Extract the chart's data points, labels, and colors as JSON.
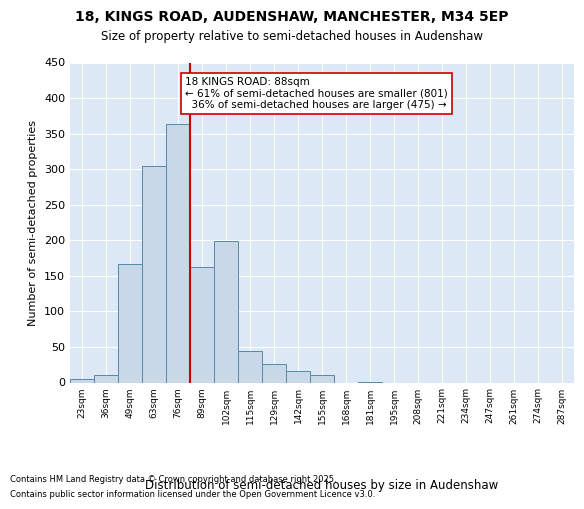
{
  "title1": "18, KINGS ROAD, AUDENSHAW, MANCHESTER, M34 5EP",
  "title2": "Size of property relative to semi-detached houses in Audenshaw",
  "xlabel": "Distribution of semi-detached houses by size in Audenshaw",
  "ylabel": "Number of semi-detached properties",
  "bin_labels": [
    "23sqm",
    "36sqm",
    "49sqm",
    "63sqm",
    "76sqm",
    "89sqm",
    "102sqm",
    "115sqm",
    "129sqm",
    "142sqm",
    "155sqm",
    "168sqm",
    "181sqm",
    "195sqm",
    "208sqm",
    "221sqm",
    "234sqm",
    "247sqm",
    "261sqm",
    "274sqm",
    "287sqm"
  ],
  "bar_values": [
    5,
    11,
    167,
    304,
    364,
    163,
    199,
    44,
    26,
    16,
    10,
    0,
    1,
    0,
    0,
    0,
    0,
    0,
    0,
    0,
    0
  ],
  "bar_color": "#c8d8e8",
  "bar_edge_color": "#5588aa",
  "highlight_bin_index": 5,
  "highlight_color": "#cc0000",
  "property_label": "18 KINGS ROAD: 88sqm",
  "pct_smaller": "61% of semi-detached houses are smaller (801)",
  "pct_larger": "36% of semi-detached houses are larger (475)",
  "annotation_box_edge": "#cc0000",
  "ylim": [
    0,
    450
  ],
  "yticks": [
    0,
    50,
    100,
    150,
    200,
    250,
    300,
    350,
    400,
    450
  ],
  "bg_color": "#dce8f5",
  "footer1": "Contains HM Land Registry data © Crown copyright and database right 2025.",
  "footer2": "Contains public sector information licensed under the Open Government Licence v3.0."
}
